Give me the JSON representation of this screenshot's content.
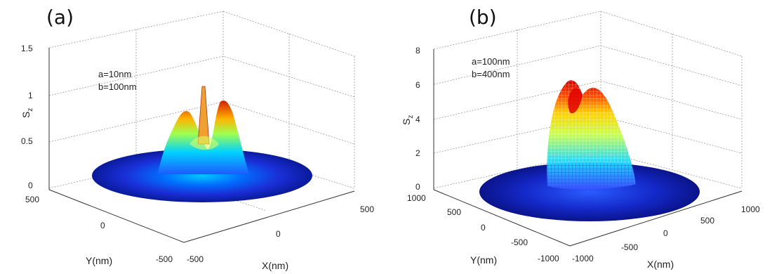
{
  "chart_data": [
    {
      "panel_label": "(a)",
      "type": "surface3d",
      "render": "shaded surface",
      "colormap": "jet",
      "annotation": [
        "a=10nm",
        "b=100nm"
      ],
      "xlabel": "X(nm)",
      "ylabel": "Y(nm)",
      "zlabel": "S",
      "zlabel_subscript": "z",
      "x_ticks": [
        "-500",
        "0",
        "500"
      ],
      "y_ticks": [
        "-500",
        "0",
        "500"
      ],
      "z_ticks": [
        "0",
        "0.5",
        "1",
        "1.5"
      ],
      "xlim": [
        -500,
        500
      ],
      "ylim": [
        -500,
        500
      ],
      "zlim": [
        0,
        1.5
      ],
      "grid": true,
      "domain_radius": 500,
      "features": {
        "ring_peak_height": 0.95,
        "ring_peak_radius": 60,
        "central_spike_height": 1.1
      }
    },
    {
      "panel_label": "(b)",
      "type": "surface3d",
      "render": "mesh",
      "colormap": "jet",
      "annotation": [
        "a=100nm",
        "b=400nm"
      ],
      "xlabel": "X(nm)",
      "ylabel": "Y(nm)",
      "zlabel": "S",
      "zlabel_subscript": "z",
      "x_ticks": [
        "-1000",
        "-500",
        "0",
        "500",
        "1000"
      ],
      "y_ticks": [
        "-1000",
        "-500",
        "0",
        "500",
        "1000"
      ],
      "z_ticks": [
        "0",
        "2",
        "4",
        "6",
        "8"
      ],
      "xlim": [
        -1000,
        1000
      ],
      "ylim": [
        -1000,
        1000
      ],
      "zlim": [
        0,
        8
      ],
      "grid": true,
      "domain_radius": 1000,
      "features": {
        "ring_peak_height": 6.5,
        "ring_peak_radius": 160,
        "center_dip": 5.2
      }
    }
  ]
}
